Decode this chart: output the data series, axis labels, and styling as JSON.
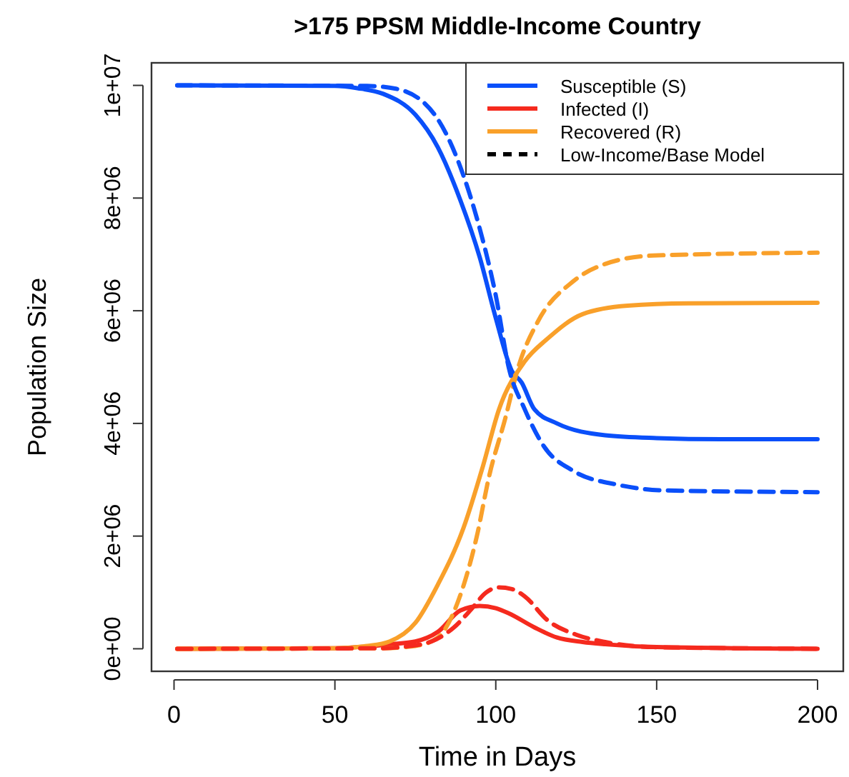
{
  "chart_data": {
    "type": "line",
    "title": ">175 PPSM Middle-Income Country",
    "xlabel": "Time in Days",
    "ylabel": "Population Size",
    "xlim": [
      -7,
      208
    ],
    "ylim": [
      -400000,
      10400000
    ],
    "xticks": [
      0,
      50,
      100,
      150,
      200
    ],
    "yticks": [
      {
        "value": 0,
        "label": "0e+00"
      },
      {
        "value": 2000000,
        "label": "2e+06"
      },
      {
        "value": 4000000,
        "label": "4e+06"
      },
      {
        "value": 6000000,
        "label": "6e+06"
      },
      {
        "value": 8000000,
        "label": "8e+06"
      },
      {
        "value": 10000000,
        "label": "1e+07"
      }
    ],
    "grid": false,
    "legend": "top right",
    "marker": "none",
    "annotations": [
      "Low-Income/Base Model"
    ],
    "series": [
      {
        "name": "Susceptible (S)",
        "color": "#0a4ffa",
        "line_style": "solid",
        "x": [
          1,
          50,
          57,
          65,
          75,
          82,
          89,
          95,
          100,
          105,
          108,
          112,
          119,
          134,
          150,
          170,
          200
        ],
        "values": [
          10000000,
          9990000,
          9950000,
          9850000,
          9480000,
          8900000,
          7960000,
          6950000,
          5870000,
          4930000,
          4730000,
          4250000,
          4000000,
          3790000,
          3740000,
          3720000,
          3720000
        ]
      },
      {
        "name": "Infected (I)",
        "color": "#f52a1e",
        "line_style": "solid",
        "x": [
          1,
          50,
          60,
          67,
          75,
          82,
          89,
          95,
          100,
          104,
          112,
          119,
          127,
          134,
          150,
          200
        ],
        "values": [
          0,
          10000,
          40000,
          80000,
          130000,
          300000,
          680000,
          760000,
          720000,
          630000,
          380000,
          200000,
          120000,
          80000,
          30000,
          0
        ]
      },
      {
        "name": "Recovered (R)",
        "color": "#f9a02a",
        "line_style": "solid",
        "x": [
          1,
          50,
          60,
          67,
          75,
          82,
          90,
          96,
          101,
          109,
          116,
          127,
          141,
          160,
          200
        ],
        "values": [
          0,
          10000,
          50000,
          130000,
          460000,
          1140000,
          2150000,
          3240000,
          4250000,
          5100000,
          5500000,
          5940000,
          6090000,
          6130000,
          6140000
        ]
      },
      {
        "color": "#0a4ffa",
        "line_style": "dashed",
        "x": [
          1,
          60,
          69,
          81,
          89,
          95,
          100,
          104,
          109,
          115,
          124,
          138,
          153,
          200
        ],
        "values": [
          10000000,
          9990000,
          9940000,
          9480000,
          8550000,
          7460000,
          6270000,
          5000000,
          4250000,
          3590000,
          3160000,
          2910000,
          2810000,
          2780000
        ]
      },
      {
        "color": "#f52a1e",
        "line_style": "dashed",
        "x": [
          1,
          65,
          72,
          80,
          87,
          92.5,
          97,
          101,
          105,
          109,
          116,
          125,
          134,
          149,
          200
        ],
        "values": [
          0,
          10000,
          40000,
          130000,
          380000,
          710000,
          1000000,
          1090000,
          1060000,
          930000,
          510000,
          250000,
          120000,
          30000,
          0
        ]
      },
      {
        "color": "#f9a02a",
        "line_style": "dashed",
        "x": [
          1,
          65,
          75,
          82,
          88,
          94,
          98,
          103,
          107,
          113,
          124,
          134,
          149,
          200
        ],
        "values": [
          0,
          10000,
          50000,
          200000,
          800000,
          1970000,
          3080000,
          4100000,
          5000000,
          5800000,
          6520000,
          6830000,
          6980000,
          7030000
        ]
      }
    ]
  }
}
